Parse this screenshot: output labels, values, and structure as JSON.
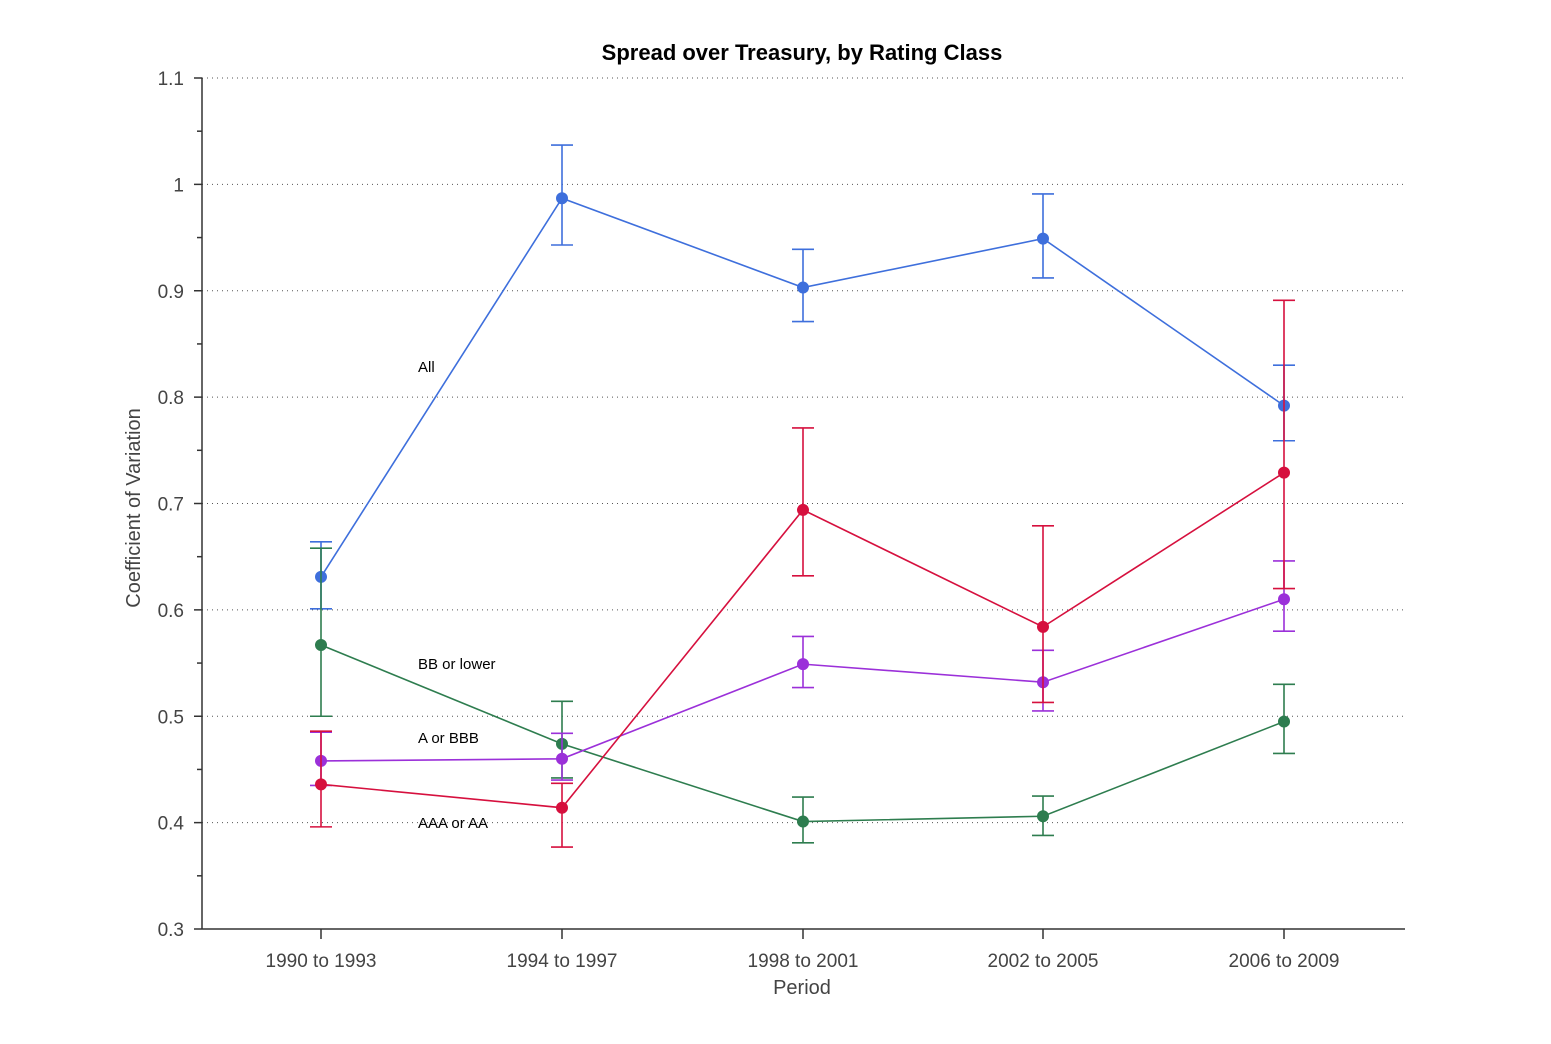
{
  "chart_data": {
    "type": "line",
    "title": "Spread over Treasury, by Rating Class",
    "xlabel": "Period",
    "ylabel": "Coefficient of Variation",
    "categories": [
      "1990 to 1993",
      "1994 to 1997",
      "1998 to 2001",
      "2002 to 2005",
      "2006 to 2009"
    ],
    "ylim": [
      0.3,
      1.1
    ],
    "yticks": [
      0.3,
      0.4,
      0.5,
      0.6,
      0.7,
      0.8,
      0.9,
      1,
      1.1
    ],
    "ytick_labels": [
      "0.3",
      "0.4",
      "0.5",
      "0.6",
      "0.7",
      "0.8",
      "0.9",
      "1",
      "1.1"
    ],
    "grid": true,
    "series": [
      {
        "name": "All",
        "color": "#3e6fdc",
        "values": [
          0.631,
          0.987,
          0.903,
          0.949,
          0.792
        ],
        "err_low": [
          0.601,
          0.943,
          0.871,
          0.912,
          0.759
        ],
        "err_high": [
          0.664,
          1.037,
          0.939,
          0.991,
          0.83
        ]
      },
      {
        "name": "BB or lower",
        "color": "#2e7d4f",
        "values": [
          0.567,
          0.474,
          0.401,
          0.406,
          0.495
        ],
        "err_low": [
          0.5,
          0.442,
          0.381,
          0.388,
          0.465
        ],
        "err_high": [
          0.658,
          0.514,
          0.424,
          0.425,
          0.53
        ]
      },
      {
        "name": "A or BBB",
        "color": "#9b30d9",
        "values": [
          0.458,
          0.46,
          0.549,
          0.532,
          0.61
        ],
        "err_low": [
          0.435,
          0.44,
          0.527,
          0.505,
          0.58
        ],
        "err_high": [
          0.485,
          0.484,
          0.575,
          0.562,
          0.646
        ]
      },
      {
        "name": "AAA or AA",
        "color": "#d6103e",
        "values": [
          0.436,
          0.414,
          0.694,
          0.584,
          0.729
        ],
        "err_low": [
          0.396,
          0.377,
          0.632,
          0.513,
          0.62
        ],
        "err_high": [
          0.486,
          0.437,
          0.771,
          0.679,
          0.891
        ]
      }
    ],
    "annotations": [
      {
        "text": "All",
        "series": "All"
      },
      {
        "text": "BB or lower",
        "series": "BB or lower"
      },
      {
        "text": "A or BBB",
        "series": "A or BBB"
      },
      {
        "text": "AAA or AA",
        "series": "AAA or AA"
      }
    ]
  }
}
